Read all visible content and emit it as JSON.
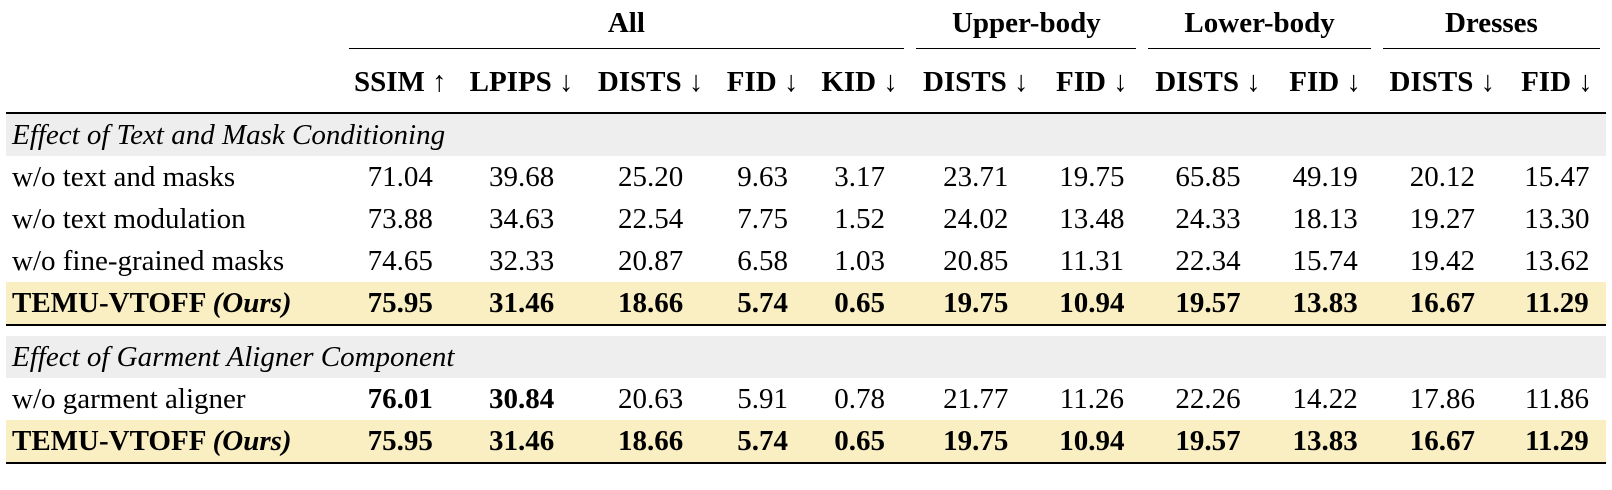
{
  "groups": [
    "All",
    "Upper-body",
    "Lower-body",
    "Dresses"
  ],
  "metrics": {
    "ssim": "SSIM ↑",
    "lpips": "LPIPS ↓",
    "dists": "DISTS ↓",
    "fid": "FID ↓",
    "kid": "KID ↓"
  },
  "sections": [
    {
      "title": "Effect of Text and Mask Conditioning",
      "rows": [
        {
          "label": "w/o text and masks",
          "values": [
            "71.04",
            "39.68",
            "25.20",
            "9.63",
            "3.17",
            "23.71",
            "19.75",
            "65.85",
            "49.19",
            "20.12",
            "15.47"
          ]
        },
        {
          "label": "w/o text modulation",
          "values": [
            "73.88",
            "34.63",
            "22.54",
            "7.75",
            "1.52",
            "24.02",
            "13.48",
            "24.33",
            "18.13",
            "19.27",
            "13.30"
          ]
        },
        {
          "label": "w/o fine-grained masks",
          "values": [
            "74.65",
            "32.33",
            "20.87",
            "6.58",
            "1.03",
            "20.85",
            "11.31",
            "22.34",
            "15.74",
            "19.42",
            "13.62"
          ]
        },
        {
          "label": "TEMU-VTOFF",
          "label_tag": "(Ours)",
          "values": [
            "75.95",
            "31.46",
            "18.66",
            "5.74",
            "0.65",
            "19.75",
            "10.94",
            "19.57",
            "13.83",
            "16.67",
            "11.29"
          ]
        }
      ]
    },
    {
      "title": "Effect of Garment Aligner Component",
      "rows": [
        {
          "label": "w/o garment aligner",
          "values": [
            "76.01",
            "30.84",
            "20.63",
            "5.91",
            "0.78",
            "21.77",
            "11.26",
            "22.26",
            "14.22",
            "17.86",
            "11.86"
          ]
        },
        {
          "label": "TEMU-VTOFF",
          "label_tag": "(Ours)",
          "values": [
            "75.95",
            "31.46",
            "18.66",
            "5.74",
            "0.65",
            "19.75",
            "10.94",
            "19.57",
            "13.83",
            "16.67",
            "11.29"
          ]
        }
      ]
    }
  ],
  "highlight_color": "#f9efc3",
  "section_bg_color": "#eeeeee"
}
